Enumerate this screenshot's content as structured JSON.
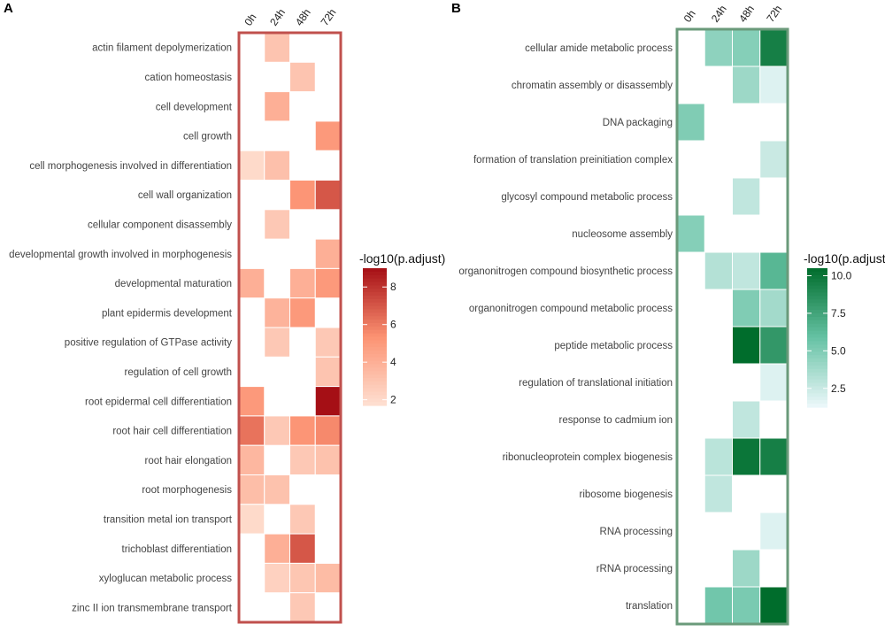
{
  "chart_data": [
    {
      "type": "heatmap",
      "panel": "A",
      "columns": [
        "0h",
        "24h",
        "48h",
        "72h"
      ],
      "rows": [
        "actin filament depolymerization",
        "cation homeostasis",
        "cell development",
        "cell growth",
        "cell morphogenesis involved in differentiation",
        "cell wall organization",
        "cellular component disassembly",
        "developmental growth involved in morphogenesis",
        "developmental maturation",
        "plant epidermis development",
        "positive regulation of GTPase activity",
        "regulation of cell growth",
        "root epidermal cell differentiation",
        "root hair cell differentiation",
        "root hair elongation",
        "root morphogenesis",
        "transition metal ion transport",
        "trichoblast differentiation",
        "xyloglucan metabolic process",
        "zinc II ion transmembrane transport"
      ],
      "values": [
        [
          null,
          3.0,
          null,
          null
        ],
        [
          null,
          null,
          3.0,
          null
        ],
        [
          null,
          4.0,
          null,
          null
        ],
        [
          null,
          null,
          null,
          5.0
        ],
        [
          2.0,
          3.2,
          null,
          null
        ],
        [
          null,
          null,
          5.2,
          7.0
        ],
        [
          null,
          2.8,
          null,
          null
        ],
        [
          null,
          null,
          null,
          4.0
        ],
        [
          4.0,
          null,
          4.0,
          5.0
        ],
        [
          null,
          3.8,
          5.0,
          null
        ],
        [
          null,
          2.8,
          null,
          2.8
        ],
        [
          null,
          null,
          null,
          3.0
        ],
        [
          5.0,
          null,
          null,
          9.0
        ],
        [
          6.2,
          2.8,
          5.2,
          5.6
        ],
        [
          3.6,
          null,
          2.8,
          3.1
        ],
        [
          3.3,
          3.1,
          null,
          null
        ],
        [
          2.0,
          null,
          2.8,
          null
        ],
        [
          null,
          4.0,
          7.0,
          null
        ],
        [
          null,
          2.4,
          2.9,
          3.4
        ],
        [
          null,
          null,
          2.8,
          null
        ]
      ],
      "legend_title": "-log10(p.adjust)",
      "legend_ticks": [
        "8",
        "6",
        "4",
        "2"
      ],
      "legend_tick_values": [
        8,
        6,
        4,
        2
      ],
      "color_range": [
        1.7,
        9.0
      ],
      "colors": {
        "low": "#fee0d2",
        "mid": "#fc9272",
        "high": "#a50f15",
        "frame": "#c0504d"
      }
    },
    {
      "type": "heatmap",
      "panel": "B",
      "columns": [
        "0h",
        "24h",
        "48h",
        "72h"
      ],
      "rows": [
        "cellular amide metabolic process",
        "chromatin assembly or disassembly",
        "DNA packaging",
        "formation of translation preinitiation complex",
        "glycosyl compound metabolic process",
        "nucleosome assembly",
        "organonitrogen compound biosynthetic process",
        "organonitrogen compound metabolic process",
        "peptide metabolic process",
        "regulation of translational initiation",
        "response to cadmium ion",
        "ribonucleoprotein complex biogenesis",
        "ribosome biogenesis",
        "RNA processing",
        "rRNA processing",
        "translation"
      ],
      "values": [
        [
          null,
          4.5,
          4.8,
          9.5
        ],
        [
          null,
          null,
          4.0,
          1.8
        ],
        [
          5.0,
          null,
          null,
          null
        ],
        [
          null,
          null,
          null,
          2.5
        ],
        [
          null,
          null,
          2.8,
          null
        ],
        [
          4.8,
          null,
          null,
          null
        ],
        [
          null,
          3.2,
          2.8,
          6.5
        ],
        [
          null,
          null,
          5.0,
          3.8
        ],
        [
          null,
          null,
          10.5,
          8.2
        ],
        [
          null,
          null,
          null,
          1.8
        ],
        [
          null,
          null,
          2.8,
          null
        ],
        [
          null,
          3.0,
          10.0,
          9.5
        ],
        [
          null,
          2.8,
          null,
          null
        ],
        [
          null,
          null,
          null,
          1.8
        ],
        [
          null,
          null,
          4.0,
          null
        ],
        [
          null,
          5.5,
          5.2,
          10.5
        ]
      ],
      "legend_title": "-log10(p.adjust)",
      "legend_ticks": [
        "10.0",
        "7.5",
        "5.0",
        "2.5"
      ],
      "legend_tick_values": [
        10,
        7.5,
        5,
        2.5
      ],
      "color_range": [
        1.25,
        10.5
      ],
      "colors": {
        "low": "#edf8fb",
        "mid": "#66c2a4",
        "high": "#006d2c",
        "frame": "#6a9a7a"
      }
    }
  ]
}
